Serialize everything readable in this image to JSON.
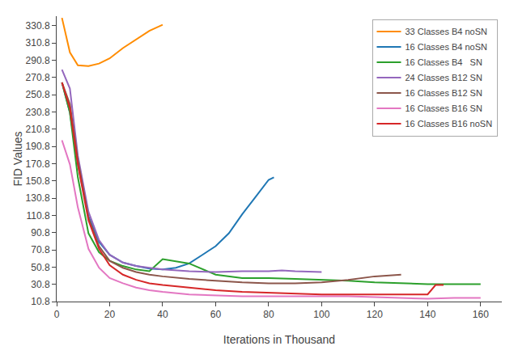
{
  "chart_data": {
    "type": "line",
    "xlabel": "Iterations in Thousand",
    "ylabel": "FID Values",
    "series": [
      {
        "name": "33 Classes B4 noSN",
        "color": "#FF8C00",
        "x": [
          2,
          5,
          8,
          12,
          16,
          20,
          25,
          30,
          35,
          40
        ],
        "values": [
          340,
          300,
          285,
          284,
          287,
          293,
          305,
          315,
          325,
          332
        ]
      },
      {
        "name": "16 Classes B4 noSN",
        "color": "#1f77b4",
        "x": [
          2,
          5,
          8,
          12,
          16,
          20,
          25,
          30,
          35,
          40,
          45,
          50,
          55,
          60,
          65,
          70,
          75,
          80,
          82
        ],
        "values": [
          265,
          230,
          170,
          110,
          80,
          65,
          56,
          52,
          49,
          48,
          50,
          55,
          65,
          75,
          90,
          112,
          132,
          152,
          155
        ]
      },
      {
        "name": "16 Classes B4   SN",
        "color": "#2ca02c",
        "x": [
          2,
          5,
          8,
          12,
          16,
          20,
          25,
          30,
          35,
          40,
          50,
          60,
          70,
          80,
          90,
          100,
          110,
          120,
          130,
          140,
          150,
          160
        ],
        "values": [
          265,
          230,
          155,
          90,
          68,
          58,
          52,
          48,
          46,
          60,
          55,
          42,
          38,
          38,
          37,
          36,
          35,
          33,
          32,
          31,
          31,
          31
        ]
      },
      {
        "name": "24 Classes B12 SN",
        "color": "#9467bd",
        "x": [
          2,
          5,
          8,
          12,
          16,
          20,
          25,
          30,
          35,
          40,
          50,
          60,
          70,
          80,
          85,
          90,
          100
        ],
        "values": [
          280,
          258,
          180,
          115,
          82,
          65,
          56,
          52,
          50,
          48,
          46,
          45,
          46,
          46,
          47,
          46,
          45
        ]
      },
      {
        "name": "16 Classes B12 SN",
        "color": "#8c564b",
        "x": [
          2,
          5,
          8,
          12,
          16,
          20,
          25,
          30,
          35,
          40,
          50,
          60,
          70,
          80,
          90,
          100,
          110,
          120,
          130
        ],
        "values": [
          265,
          240,
          175,
          108,
          75,
          58,
          50,
          45,
          42,
          40,
          37,
          35,
          33,
          32,
          32,
          33,
          36,
          40,
          42
        ]
      },
      {
        "name": "16 Classes B16 SN",
        "color": "#e377c2",
        "x": [
          2,
          5,
          8,
          12,
          16,
          20,
          25,
          30,
          35,
          40,
          50,
          60,
          70,
          80,
          90,
          100,
          110,
          120,
          130,
          140,
          150,
          160
        ],
        "values": [
          198,
          170,
          120,
          72,
          50,
          38,
          32,
          27,
          24,
          22,
          19,
          18,
          17,
          17,
          17,
          17,
          17,
          16,
          15,
          14,
          15,
          15
        ]
      },
      {
        "name": "16 Classes B16 noSN",
        "color": "#d62728",
        "x": [
          2,
          5,
          8,
          12,
          16,
          20,
          25,
          30,
          35,
          40,
          50,
          60,
          70,
          80,
          90,
          100,
          110,
          120,
          130,
          140,
          143,
          146
        ],
        "values": [
          265,
          235,
          170,
          105,
          72,
          53,
          42,
          36,
          32,
          30,
          27,
          24,
          22,
          21,
          20,
          19,
          19,
          19,
          19,
          19,
          30,
          30
        ]
      }
    ],
    "xlim": [
      0,
      168
    ],
    "xticks": [
      0,
      20,
      40,
      60,
      80,
      100,
      120,
      140,
      160
    ],
    "ylim": [
      10.8,
      342
    ],
    "yticks": [
      10.8,
      30.8,
      50.8,
      70.8,
      90.8,
      110.8,
      130.8,
      150.8,
      170.8,
      190.8,
      210.8,
      230.8,
      250.8,
      270.8,
      290.8,
      310.8,
      330.8
    ],
    "grid": false,
    "legend": "upper right"
  }
}
